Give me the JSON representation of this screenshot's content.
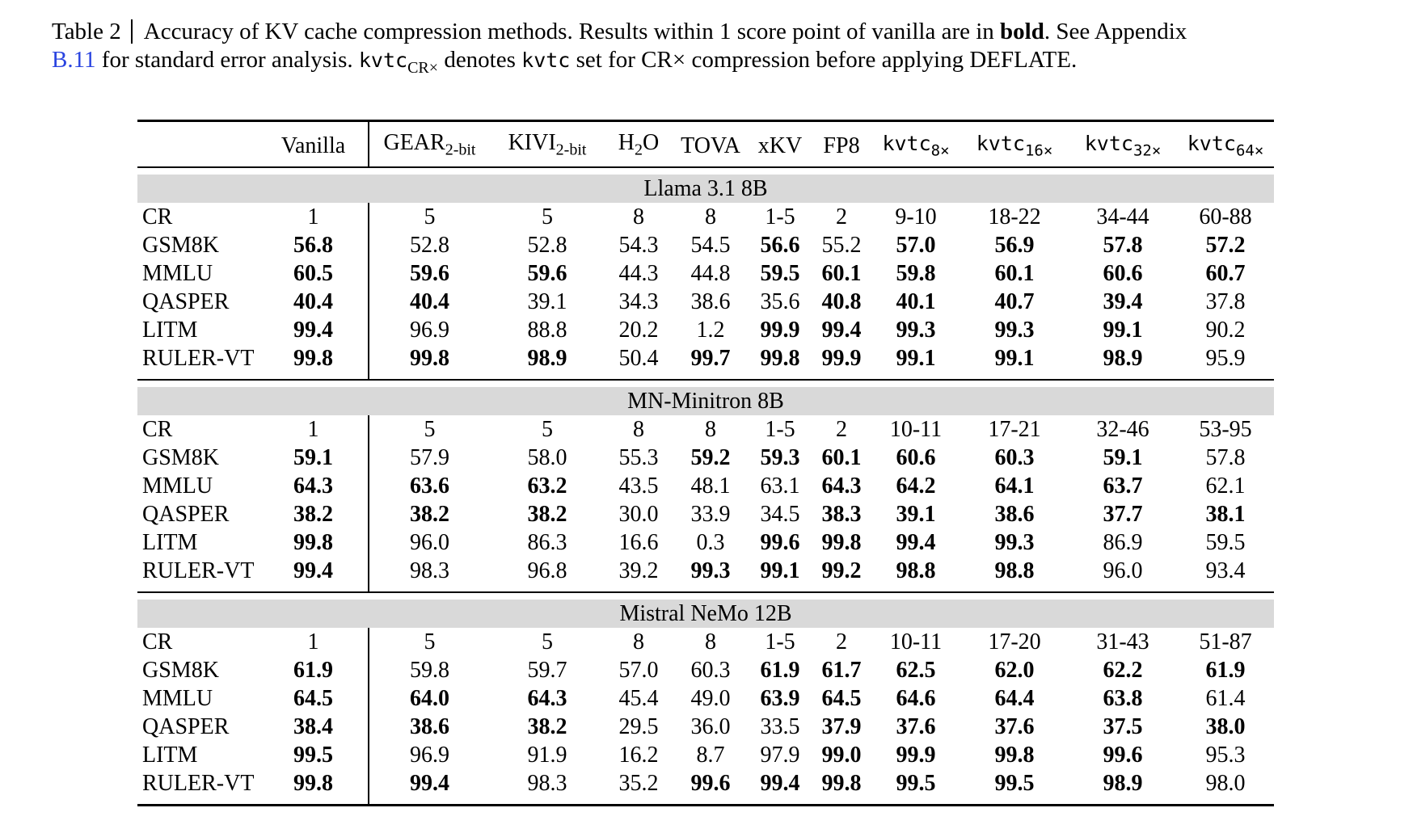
{
  "caption": {
    "label": "Table 2",
    "line1_a": "Accuracy of KV cache compression methods. Results within 1 score point of vanilla are in ",
    "line1_bold": "bold",
    "line1_b": ".  See Appendix",
    "line2_link": "B.11",
    "line2_a": " for standard error analysis. ",
    "line2_mono1": "kvtc",
    "line2_sub": "CR×",
    "line2_b": " denotes ",
    "line2_mono2": "kvtc",
    "line2_c": " set for CR× compression before applying DEFLATE.",
    "link_color": "#2a44e0"
  },
  "table": {
    "band_color": "#d9d9d9",
    "columns": [
      {
        "label": ""
      },
      {
        "label": "Vanilla"
      },
      {
        "label": "GEAR",
        "sub": "2-bit"
      },
      {
        "label": "KIVI",
        "sub": "2-bit"
      },
      {
        "label": "H",
        "sub": "2",
        "tail": "O"
      },
      {
        "label": "TOVA"
      },
      {
        "label": "xKV"
      },
      {
        "label": "FP8"
      },
      {
        "label": "kvtc",
        "sub": "8×",
        "mono": true
      },
      {
        "label": "kvtc",
        "sub": "16×",
        "mono": true
      },
      {
        "label": "kvtc",
        "sub": "32×",
        "mono": true
      },
      {
        "label": "kvtc",
        "sub": "64×",
        "mono": true
      }
    ],
    "sections": [
      {
        "title": "Llama 3.1 8B",
        "rows": [
          {
            "label": "CR",
            "values": [
              "1",
              "5",
              "5",
              "8",
              "8",
              "1-5",
              "2",
              "9-10",
              "18-22",
              "34-44",
              "60-88"
            ],
            "bold": [
              0,
              0,
              0,
              0,
              0,
              0,
              0,
              0,
              0,
              0,
              0
            ]
          },
          {
            "label": "GSM8K",
            "values": [
              "56.8",
              "52.8",
              "52.8",
              "54.3",
              "54.5",
              "56.6",
              "55.2",
              "57.0",
              "56.9",
              "57.8",
              "57.2"
            ],
            "bold": [
              1,
              0,
              0,
              0,
              0,
              1,
              0,
              1,
              1,
              1,
              1
            ]
          },
          {
            "label": "MMLU",
            "values": [
              "60.5",
              "59.6",
              "59.6",
              "44.3",
              "44.8",
              "59.5",
              "60.1",
              "59.8",
              "60.1",
              "60.6",
              "60.7"
            ],
            "bold": [
              1,
              1,
              1,
              0,
              0,
              1,
              1,
              1,
              1,
              1,
              1
            ]
          },
          {
            "label": "QASPER",
            "values": [
              "40.4",
              "40.4",
              "39.1",
              "34.3",
              "38.6",
              "35.6",
              "40.8",
              "40.1",
              "40.7",
              "39.4",
              "37.8"
            ],
            "bold": [
              1,
              1,
              0,
              0,
              0,
              0,
              1,
              1,
              1,
              1,
              0
            ]
          },
          {
            "label": "LITM",
            "values": [
              "99.4",
              "96.9",
              "88.8",
              "20.2",
              "1.2",
              "99.9",
              "99.4",
              "99.3",
              "99.3",
              "99.1",
              "90.2"
            ],
            "bold": [
              1,
              0,
              0,
              0,
              0,
              1,
              1,
              1,
              1,
              1,
              0
            ]
          },
          {
            "label": "RULER-VT",
            "values": [
              "99.8",
              "99.8",
              "98.9",
              "50.4",
              "99.7",
              "99.8",
              "99.9",
              "99.1",
              "99.1",
              "98.9",
              "95.9"
            ],
            "bold": [
              1,
              1,
              1,
              0,
              1,
              1,
              1,
              1,
              1,
              1,
              0
            ]
          }
        ]
      },
      {
        "title": "MN-Minitron 8B",
        "rows": [
          {
            "label": "CR",
            "values": [
              "1",
              "5",
              "5",
              "8",
              "8",
              "1-5",
              "2",
              "10-11",
              "17-21",
              "32-46",
              "53-95"
            ],
            "bold": [
              0,
              0,
              0,
              0,
              0,
              0,
              0,
              0,
              0,
              0,
              0
            ]
          },
          {
            "label": "GSM8K",
            "values": [
              "59.1",
              "57.9",
              "58.0",
              "55.3",
              "59.2",
              "59.3",
              "60.1",
              "60.6",
              "60.3",
              "59.1",
              "57.8"
            ],
            "bold": [
              1,
              0,
              0,
              0,
              1,
              1,
              1,
              1,
              1,
              1,
              0
            ]
          },
          {
            "label": "MMLU",
            "values": [
              "64.3",
              "63.6",
              "63.2",
              "43.5",
              "48.1",
              "63.1",
              "64.3",
              "64.2",
              "64.1",
              "63.7",
              "62.1"
            ],
            "bold": [
              1,
              1,
              1,
              0,
              0,
              0,
              1,
              1,
              1,
              1,
              0
            ]
          },
          {
            "label": "QASPER",
            "values": [
              "38.2",
              "38.2",
              "38.2",
              "30.0",
              "33.9",
              "34.5",
              "38.3",
              "39.1",
              "38.6",
              "37.7",
              "38.1"
            ],
            "bold": [
              1,
              1,
              1,
              0,
              0,
              0,
              1,
              1,
              1,
              1,
              1
            ]
          },
          {
            "label": "LITM",
            "values": [
              "99.8",
              "96.0",
              "86.3",
              "16.6",
              "0.3",
              "99.6",
              "99.8",
              "99.4",
              "99.3",
              "86.9",
              "59.5"
            ],
            "bold": [
              1,
              0,
              0,
              0,
              0,
              1,
              1,
              1,
              1,
              0,
              0
            ]
          },
          {
            "label": "RULER-VT",
            "values": [
              "99.4",
              "98.3",
              "96.8",
              "39.2",
              "99.3",
              "99.1",
              "99.2",
              "98.8",
              "98.8",
              "96.0",
              "93.4"
            ],
            "bold": [
              1,
              0,
              0,
              0,
              1,
              1,
              1,
              1,
              1,
              0,
              0
            ]
          }
        ]
      },
      {
        "title": "Mistral NeMo 12B",
        "rows": [
          {
            "label": "CR",
            "values": [
              "1",
              "5",
              "5",
              "8",
              "8",
              "1-5",
              "2",
              "10-11",
              "17-20",
              "31-43",
              "51-87"
            ],
            "bold": [
              0,
              0,
              0,
              0,
              0,
              0,
              0,
              0,
              0,
              0,
              0
            ]
          },
          {
            "label": "GSM8K",
            "values": [
              "61.9",
              "59.8",
              "59.7",
              "57.0",
              "60.3",
              "61.9",
              "61.7",
              "62.5",
              "62.0",
              "62.2",
              "61.9"
            ],
            "bold": [
              1,
              0,
              0,
              0,
              0,
              1,
              1,
              1,
              1,
              1,
              1
            ]
          },
          {
            "label": "MMLU",
            "values": [
              "64.5",
              "64.0",
              "64.3",
              "45.4",
              "49.0",
              "63.9",
              "64.5",
              "64.6",
              "64.4",
              "63.8",
              "61.4"
            ],
            "bold": [
              1,
              1,
              1,
              0,
              0,
              1,
              1,
              1,
              1,
              1,
              0
            ]
          },
          {
            "label": "QASPER",
            "values": [
              "38.4",
              "38.6",
              "38.2",
              "29.5",
              "36.0",
              "33.5",
              "37.9",
              "37.6",
              "37.6",
              "37.5",
              "38.0"
            ],
            "bold": [
              1,
              1,
              1,
              0,
              0,
              0,
              1,
              1,
              1,
              1,
              1
            ]
          },
          {
            "label": "LITM",
            "values": [
              "99.5",
              "96.9",
              "91.9",
              "16.2",
              "8.7",
              "97.9",
              "99.0",
              "99.9",
              "99.8",
              "99.6",
              "95.3"
            ],
            "bold": [
              1,
              0,
              0,
              0,
              0,
              0,
              1,
              1,
              1,
              1,
              0
            ]
          },
          {
            "label": "RULER-VT",
            "values": [
              "99.8",
              "99.4",
              "98.3",
              "35.2",
              "99.6",
              "99.4",
              "99.8",
              "99.5",
              "99.5",
              "98.9",
              "98.0"
            ],
            "bold": [
              1,
              1,
              0,
              0,
              1,
              1,
              1,
              1,
              1,
              1,
              0
            ]
          }
        ]
      }
    ]
  }
}
